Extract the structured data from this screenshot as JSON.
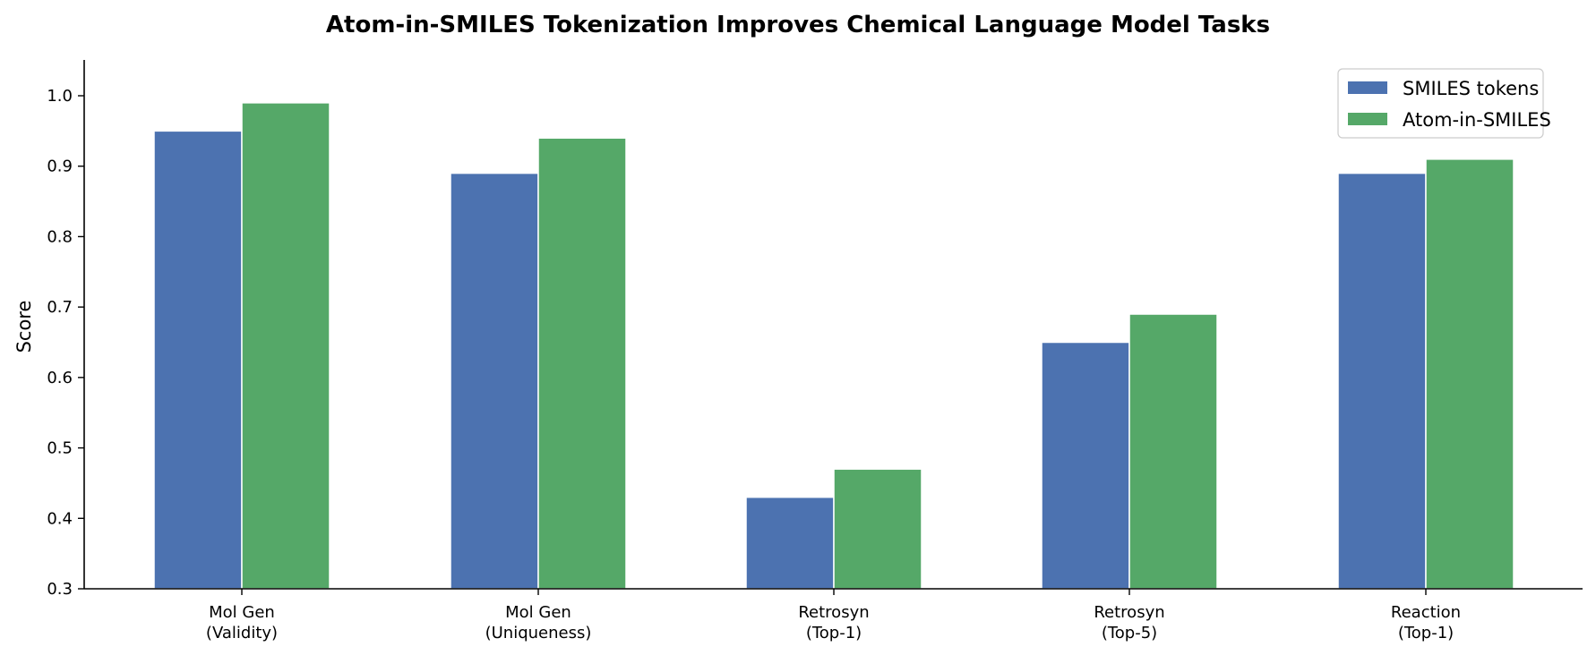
{
  "chart_data": {
    "type": "bar",
    "title": "Atom-in-SMILES Tokenization Improves Chemical Language Model Tasks",
    "xlabel": "",
    "ylabel": "Score",
    "ylim": [
      0.3,
      1.05
    ],
    "yticks": [
      0.3,
      0.4,
      0.5,
      0.6,
      0.7,
      0.8,
      0.9,
      1.0
    ],
    "ytick_labels": [
      "0.3",
      "0.4",
      "0.5",
      "0.6",
      "0.7",
      "0.8",
      "0.9",
      "1.0"
    ],
    "grid": false,
    "legend_position": "upper right",
    "categories": [
      [
        "Mol Gen",
        "(Validity)"
      ],
      [
        "Mol Gen",
        "(Uniqueness)"
      ],
      [
        "Retrosyn",
        "(Top-1)"
      ],
      [
        "Retrosyn",
        "(Top-5)"
      ],
      [
        "Reaction",
        "(Top-1)"
      ]
    ],
    "series": [
      {
        "name": "SMILES tokens",
        "color": "#4c72b0",
        "values": [
          0.95,
          0.89,
          0.43,
          0.65,
          0.89
        ]
      },
      {
        "name": "Atom-in-SMILES",
        "color": "#55a868",
        "values": [
          0.99,
          0.94,
          0.47,
          0.69,
          0.91
        ]
      }
    ]
  }
}
